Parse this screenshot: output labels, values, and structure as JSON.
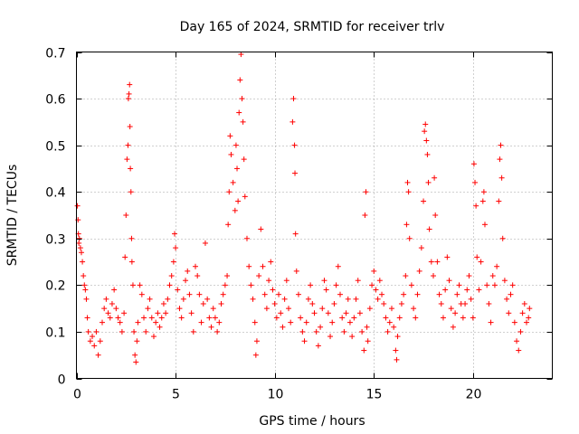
{
  "chart_data": {
    "type": "scatter",
    "title": "Day 165 of 2024, SRMTID for receiver trlv",
    "xlabel": "GPS time / hours",
    "ylabel": "SRMTID / TECUs",
    "xlim": [
      0,
      24
    ],
    "ylim": [
      0,
      0.7
    ],
    "xticks": [
      0,
      5,
      10,
      15,
      20
    ],
    "xtick_labels": [
      "0",
      "5",
      "10",
      "15",
      "20"
    ],
    "yticks": [
      0,
      0.1,
      0.2,
      0.3,
      0.4,
      0.5,
      0.6,
      0.7
    ],
    "ytick_labels": [
      "0",
      "0.1",
      "0.2",
      "0.3",
      "0.4",
      "0.5",
      "0.6",
      "0.7"
    ],
    "grid": true,
    "marker": "+",
    "color": "#ff0000",
    "series": [
      {
        "name": "SRMTID",
        "points": [
          [
            0.05,
            0.37
          ],
          [
            0.08,
            0.34
          ],
          [
            0.1,
            0.31
          ],
          [
            0.12,
            0.29
          ],
          [
            0.15,
            0.3
          ],
          [
            0.2,
            0.28
          ],
          [
            0.25,
            0.27
          ],
          [
            0.3,
            0.25
          ],
          [
            0.35,
            0.22
          ],
          [
            0.4,
            0.2
          ],
          [
            0.45,
            0.19
          ],
          [
            0.5,
            0.17
          ],
          [
            0.55,
            0.13
          ],
          [
            0.6,
            0.1
          ],
          [
            0.7,
            0.08
          ],
          [
            0.8,
            0.09
          ],
          [
            0.9,
            0.07
          ],
          [
            1.0,
            0.1
          ],
          [
            1.1,
            0.05
          ],
          [
            1.2,
            0.08
          ],
          [
            1.3,
            0.12
          ],
          [
            1.4,
            0.15
          ],
          [
            1.5,
            0.17
          ],
          [
            1.6,
            0.14
          ],
          [
            1.7,
            0.13
          ],
          [
            1.8,
            0.16
          ],
          [
            1.9,
            0.19
          ],
          [
            2.0,
            0.15
          ],
          [
            2.1,
            0.13
          ],
          [
            2.2,
            0.12
          ],
          [
            2.3,
            0.1
          ],
          [
            2.4,
            0.14
          ],
          [
            2.45,
            0.26
          ],
          [
            2.5,
            0.35
          ],
          [
            2.55,
            0.47
          ],
          [
            2.6,
            0.5
          ],
          [
            2.62,
            0.6
          ],
          [
            2.65,
            0.61
          ],
          [
            2.68,
            0.63
          ],
          [
            2.7,
            0.54
          ],
          [
            2.72,
            0.45
          ],
          [
            2.75,
            0.4
          ],
          [
            2.78,
            0.3
          ],
          [
            2.8,
            0.25
          ],
          [
            2.85,
            0.2
          ],
          [
            2.9,
            0.1
          ],
          [
            2.95,
            0.05
          ],
          [
            3.0,
            0.035
          ],
          [
            3.05,
            0.08
          ],
          [
            3.1,
            0.12
          ],
          [
            3.2,
            0.2
          ],
          [
            3.3,
            0.18
          ],
          [
            3.4,
            0.13
          ],
          [
            3.5,
            0.1
          ],
          [
            3.6,
            0.15
          ],
          [
            3.7,
            0.17
          ],
          [
            3.8,
            0.13
          ],
          [
            3.9,
            0.09
          ],
          [
            4.0,
            0.12
          ],
          [
            4.1,
            0.14
          ],
          [
            4.2,
            0.11
          ],
          [
            4.3,
            0.13
          ],
          [
            4.4,
            0.16
          ],
          [
            4.5,
            0.14
          ],
          [
            4.6,
            0.17
          ],
          [
            4.7,
            0.2
          ],
          [
            4.8,
            0.22
          ],
          [
            4.9,
            0.25
          ],
          [
            4.95,
            0.31
          ],
          [
            5.0,
            0.28
          ],
          [
            5.1,
            0.19
          ],
          [
            5.2,
            0.15
          ],
          [
            5.3,
            0.13
          ],
          [
            5.4,
            0.17
          ],
          [
            5.5,
            0.21
          ],
          [
            5.6,
            0.23
          ],
          [
            5.7,
            0.18
          ],
          [
            5.8,
            0.14
          ],
          [
            5.9,
            0.1
          ],
          [
            6.0,
            0.24
          ],
          [
            6.1,
            0.22
          ],
          [
            6.2,
            0.18
          ],
          [
            6.3,
            0.12
          ],
          [
            6.4,
            0.16
          ],
          [
            6.5,
            0.29
          ],
          [
            6.6,
            0.17
          ],
          [
            6.7,
            0.13
          ],
          [
            6.8,
            0.11
          ],
          [
            6.9,
            0.15
          ],
          [
            7.0,
            0.13
          ],
          [
            7.1,
            0.1
          ],
          [
            7.2,
            0.12
          ],
          [
            7.3,
            0.16
          ],
          [
            7.4,
            0.18
          ],
          [
            7.5,
            0.2
          ],
          [
            7.6,
            0.22
          ],
          [
            7.65,
            0.33
          ],
          [
            7.7,
            0.4
          ],
          [
            7.75,
            0.52
          ],
          [
            7.8,
            0.48
          ],
          [
            7.9,
            0.42
          ],
          [
            8.0,
            0.36
          ],
          [
            8.05,
            0.5
          ],
          [
            8.1,
            0.45
          ],
          [
            8.15,
            0.38
          ],
          [
            8.2,
            0.57
          ],
          [
            8.25,
            0.64
          ],
          [
            8.3,
            0.695
          ],
          [
            8.35,
            0.6
          ],
          [
            8.4,
            0.55
          ],
          [
            8.45,
            0.47
          ],
          [
            8.5,
            0.39
          ],
          [
            8.6,
            0.3
          ],
          [
            8.7,
            0.24
          ],
          [
            8.8,
            0.2
          ],
          [
            8.9,
            0.17
          ],
          [
            9.0,
            0.12
          ],
          [
            9.05,
            0.05
          ],
          [
            9.1,
            0.08
          ],
          [
            9.2,
            0.22
          ],
          [
            9.3,
            0.32
          ],
          [
            9.4,
            0.24
          ],
          [
            9.5,
            0.18
          ],
          [
            9.6,
            0.15
          ],
          [
            9.7,
            0.21
          ],
          [
            9.8,
            0.25
          ],
          [
            9.9,
            0.19
          ],
          [
            10.0,
            0.16
          ],
          [
            10.1,
            0.13
          ],
          [
            10.2,
            0.18
          ],
          [
            10.3,
            0.14
          ],
          [
            10.4,
            0.11
          ],
          [
            10.5,
            0.17
          ],
          [
            10.6,
            0.21
          ],
          [
            10.7,
            0.15
          ],
          [
            10.8,
            0.12
          ],
          [
            10.9,
            0.55
          ],
          [
            10.95,
            0.6
          ],
          [
            11.0,
            0.5
          ],
          [
            11.02,
            0.44
          ],
          [
            11.05,
            0.31
          ],
          [
            11.1,
            0.23
          ],
          [
            11.2,
            0.18
          ],
          [
            11.3,
            0.13
          ],
          [
            11.4,
            0.1
          ],
          [
            11.5,
            0.08
          ],
          [
            11.6,
            0.12
          ],
          [
            11.7,
            0.17
          ],
          [
            11.8,
            0.2
          ],
          [
            11.9,
            0.16
          ],
          [
            12.0,
            0.14
          ],
          [
            12.1,
            0.1
          ],
          [
            12.2,
            0.07
          ],
          [
            12.3,
            0.11
          ],
          [
            12.4,
            0.15
          ],
          [
            12.5,
            0.21
          ],
          [
            12.6,
            0.19
          ],
          [
            12.7,
            0.14
          ],
          [
            12.8,
            0.09
          ],
          [
            12.9,
            0.12
          ],
          [
            13.0,
            0.16
          ],
          [
            13.1,
            0.2
          ],
          [
            13.2,
            0.24
          ],
          [
            13.3,
            0.18
          ],
          [
            13.4,
            0.13
          ],
          [
            13.5,
            0.1
          ],
          [
            13.6,
            0.14
          ],
          [
            13.7,
            0.17
          ],
          [
            13.8,
            0.12
          ],
          [
            13.9,
            0.09
          ],
          [
            14.0,
            0.13
          ],
          [
            14.1,
            0.17
          ],
          [
            14.2,
            0.21
          ],
          [
            14.3,
            0.14
          ],
          [
            14.4,
            0.1
          ],
          [
            14.5,
            0.06
          ],
          [
            14.55,
            0.35
          ],
          [
            14.6,
            0.4
          ],
          [
            14.65,
            0.11
          ],
          [
            14.7,
            0.08
          ],
          [
            14.8,
            0.15
          ],
          [
            14.9,
            0.2
          ],
          [
            15.0,
            0.23
          ],
          [
            15.1,
            0.19
          ],
          [
            15.2,
            0.17
          ],
          [
            15.3,
            0.21
          ],
          [
            15.4,
            0.18
          ],
          [
            15.5,
            0.16
          ],
          [
            15.6,
            0.13
          ],
          [
            15.7,
            0.1
          ],
          [
            15.8,
            0.12
          ],
          [
            15.9,
            0.15
          ],
          [
            16.0,
            0.11
          ],
          [
            16.1,
            0.06
          ],
          [
            16.15,
            0.04
          ],
          [
            16.2,
            0.09
          ],
          [
            16.3,
            0.13
          ],
          [
            16.4,
            0.16
          ],
          [
            16.5,
            0.18
          ],
          [
            16.6,
            0.22
          ],
          [
            16.65,
            0.33
          ],
          [
            16.7,
            0.42
          ],
          [
            16.75,
            0.4
          ],
          [
            16.8,
            0.3
          ],
          [
            16.9,
            0.2
          ],
          [
            17.0,
            0.15
          ],
          [
            17.1,
            0.13
          ],
          [
            17.2,
            0.18
          ],
          [
            17.3,
            0.23
          ],
          [
            17.4,
            0.28
          ],
          [
            17.5,
            0.38
          ],
          [
            17.55,
            0.53
          ],
          [
            17.6,
            0.545
          ],
          [
            17.65,
            0.51
          ],
          [
            17.7,
            0.48
          ],
          [
            17.75,
            0.42
          ],
          [
            17.8,
            0.32
          ],
          [
            17.9,
            0.25
          ],
          [
            18.0,
            0.22
          ],
          [
            18.05,
            0.43
          ],
          [
            18.1,
            0.35
          ],
          [
            18.2,
            0.25
          ],
          [
            18.3,
            0.18
          ],
          [
            18.4,
            0.16
          ],
          [
            18.5,
            0.13
          ],
          [
            18.6,
            0.19
          ],
          [
            18.7,
            0.26
          ],
          [
            18.8,
            0.21
          ],
          [
            18.9,
            0.15
          ],
          [
            19.0,
            0.11
          ],
          [
            19.1,
            0.14
          ],
          [
            19.2,
            0.18
          ],
          [
            19.3,
            0.2
          ],
          [
            19.4,
            0.16
          ],
          [
            19.5,
            0.13
          ],
          [
            19.6,
            0.16
          ],
          [
            19.7,
            0.19
          ],
          [
            19.8,
            0.22
          ],
          [
            19.9,
            0.17
          ],
          [
            20.0,
            0.13
          ],
          [
            20.05,
            0.46
          ],
          [
            20.1,
            0.42
          ],
          [
            20.15,
            0.37
          ],
          [
            20.2,
            0.26
          ],
          [
            20.3,
            0.19
          ],
          [
            20.4,
            0.25
          ],
          [
            20.5,
            0.38
          ],
          [
            20.55,
            0.4
          ],
          [
            20.6,
            0.33
          ],
          [
            20.7,
            0.2
          ],
          [
            20.8,
            0.16
          ],
          [
            20.9,
            0.12
          ],
          [
            21.0,
            0.22
          ],
          [
            21.1,
            0.2
          ],
          [
            21.2,
            0.24
          ],
          [
            21.3,
            0.38
          ],
          [
            21.35,
            0.47
          ],
          [
            21.4,
            0.5
          ],
          [
            21.45,
            0.43
          ],
          [
            21.5,
            0.3
          ],
          [
            21.6,
            0.21
          ],
          [
            21.7,
            0.17
          ],
          [
            21.8,
            0.14
          ],
          [
            21.9,
            0.18
          ],
          [
            22.0,
            0.2
          ],
          [
            22.1,
            0.12
          ],
          [
            22.2,
            0.08
          ],
          [
            22.3,
            0.06
          ],
          [
            22.4,
            0.1
          ],
          [
            22.5,
            0.14
          ],
          [
            22.6,
            0.16
          ],
          [
            22.7,
            0.12
          ],
          [
            22.8,
            0.13
          ],
          [
            22.85,
            0.15
          ]
        ]
      }
    ]
  }
}
